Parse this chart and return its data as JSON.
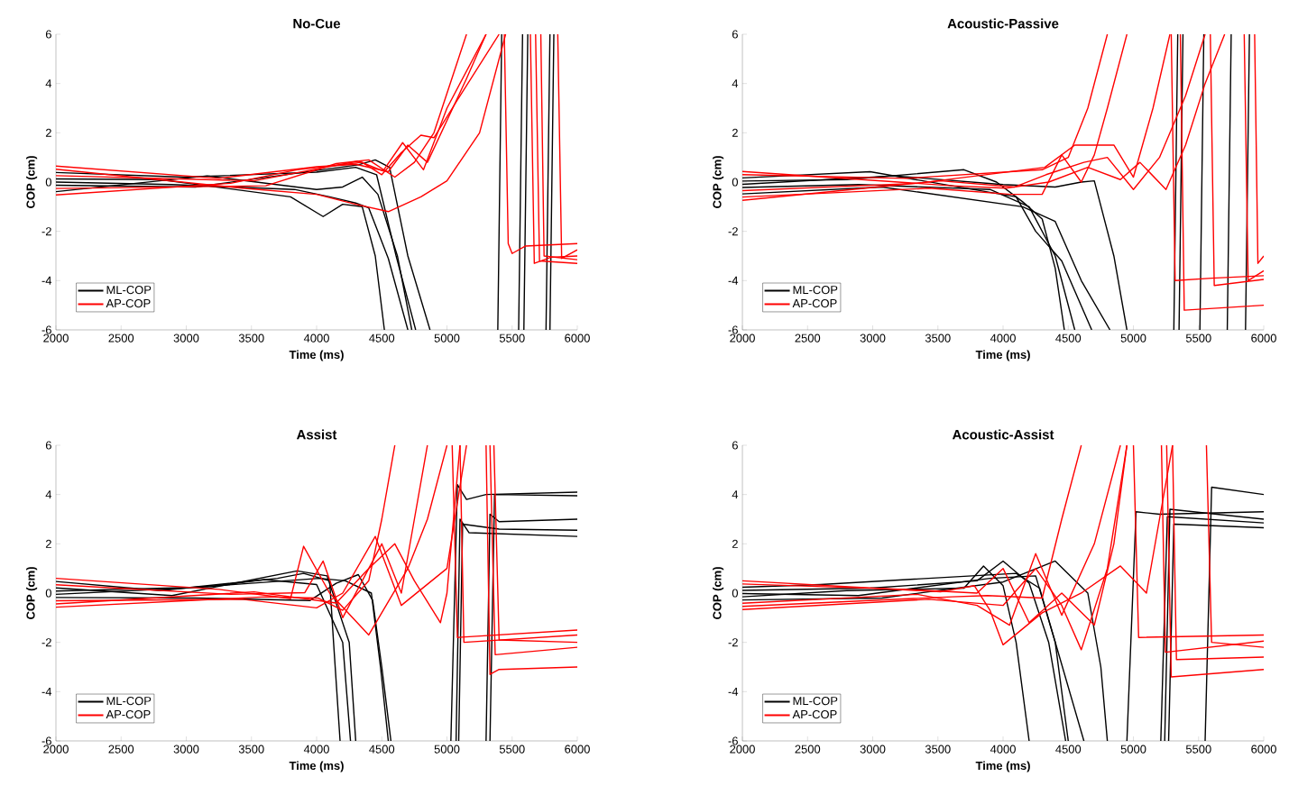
{
  "chart_data": [
    {
      "type": "line",
      "title": "No-Cue",
      "xlabel": "Time (ms)",
      "ylabel": "COP (cm)",
      "xlim": [
        2000,
        6000
      ],
      "ylim": [
        -6,
        6
      ],
      "xticks": [
        2000,
        2500,
        3000,
        3500,
        4000,
        4500,
        5000,
        5500,
        6000
      ],
      "yticks": [
        -6,
        -4,
        -2,
        0,
        2,
        4,
        6
      ],
      "legend": "bottom left",
      "series": [
        {
          "name": "ML-COP",
          "color": "#000000",
          "x": [
            2000,
            2800,
            3800,
            4050,
            4200,
            4350,
            4450,
            4520,
            4900,
            5390,
            5420
          ],
          "values": [
            0.13,
            0.1,
            -0.6,
            -1.4,
            -0.9,
            -1.0,
            -3,
            -6,
            null,
            -6,
            6
          ]
        },
        {
          "color": "#000000",
          "x": [
            2000,
            2890,
            3830,
            4100,
            4300,
            4400,
            4550,
            4700,
            5100,
            5550,
            5580
          ],
          "values": [
            0,
            -0.1,
            -0.3,
            -0.6,
            -0.85,
            -1.05,
            -3.1,
            -6,
            null,
            -6,
            6
          ]
        },
        {
          "color": "#000000",
          "x": [
            2000,
            2980,
            4000,
            4300,
            4460,
            4610,
            4760,
            5200,
            5590,
            5620
          ],
          "values": [
            0.39,
            0.2,
            0.4,
            0.6,
            0.3,
            -3,
            -6,
            null,
            -6,
            6
          ]
        },
        {
          "color": "#000000",
          "x": [
            2000,
            3070,
            4320,
            4450,
            4560,
            4700,
            4870,
            5300,
            5760,
            5790
          ],
          "values": [
            -0.13,
            -0.2,
            0.7,
            0.9,
            0.6,
            -3,
            -6,
            null,
            -6,
            6
          ]
        },
        {
          "color": "#000000",
          "x": [
            2000,
            3160,
            4000,
            4200,
            4350,
            4470,
            4620,
            4730,
            5150,
            5790,
            5820
          ],
          "values": [
            -0.39,
            0.25,
            -0.3,
            -0.2,
            0.2,
            -0.5,
            -3,
            -6,
            null,
            -6,
            6
          ]
        },
        {
          "name": "AP-COP",
          "color": "#ff0000",
          "x": [
            2000,
            3250,
            4000,
            4300,
            4550,
            4700,
            4850,
            5000,
            5150,
            5300,
            5370,
            5440,
            5470,
            5500,
            5600,
            6000
          ],
          "values": [
            0.65,
            0.15,
            0.62,
            0.72,
            0.42,
            1.5,
            0.8,
            2.5,
            4.2,
            6,
            null,
            6,
            -2.5,
            -2.9,
            -2.6,
            -2.5
          ]
        },
        {
          "color": "#ff0000",
          "x": [
            2000,
            3340,
            3850,
            4350,
            4500,
            4650,
            4800,
            4900,
            5100,
            5400,
            5520,
            5640,
            5670,
            5800,
            6000
          ],
          "values": [
            -0.52,
            -0.05,
            0.5,
            0.8,
            0.3,
            1.2,
            1.9,
            1.8,
            3.5,
            6,
            null,
            6,
            -3.3,
            -3.05,
            -3.0
          ]
        },
        {
          "color": "#ff0000",
          "x": [
            2000,
            3430,
            4000,
            4300,
            4550,
            4800,
            5000,
            5250,
            5450,
            5560,
            5680,
            5710,
            6000
          ],
          "values": [
            0.52,
            -0.25,
            -0.5,
            -0.9,
            -1.2,
            -0.6,
            0.05,
            2,
            6,
            null,
            6,
            -3.2,
            -3.3
          ]
        },
        {
          "color": "#ff0000",
          "x": [
            2000,
            3520,
            4320,
            4510,
            4660,
            4820,
            5000,
            5300,
            5580,
            5850,
            5880,
            6000
          ],
          "values": [
            0.26,
            0.05,
            0.85,
            0.45,
            1.6,
            0.5,
            3,
            6,
            null,
            6,
            -3.1,
            -2.75
          ]
        },
        {
          "color": "#ff0000",
          "x": [
            2000,
            3610,
            4150,
            4400,
            4600,
            4750,
            4900,
            5150,
            5430,
            5720,
            5745,
            6000
          ],
          "values": [
            -0.26,
            -0.15,
            0.75,
            0.9,
            0.2,
            0.8,
            2,
            6,
            null,
            6,
            -3.0,
            -3.15
          ]
        }
      ]
    },
    {
      "type": "line",
      "title": "Acoustic-Passive",
      "xlabel": "Time (ms)",
      "ylabel": "COP (cm)",
      "xlim": [
        2000,
        6000
      ],
      "ylim": [
        -6,
        6
      ],
      "xticks": [
        2000,
        2500,
        3000,
        3500,
        4000,
        4500,
        5000,
        5500,
        6000
      ],
      "yticks": [
        -6,
        -4,
        -2,
        0,
        2,
        4,
        6
      ],
      "legend": "bottom left",
      "series": [
        {
          "name": "ML-COP",
          "color": "#000000",
          "x": [
            2000,
            2800,
            3700,
            3950,
            4150,
            4300,
            4400,
            4470,
            4900,
            5310,
            5340
          ],
          "values": [
            0.04,
            0.1,
            0.5,
            0,
            -0.8,
            -1.5,
            -3.5,
            -6,
            null,
            -6,
            6
          ]
        },
        {
          "color": "#000000",
          "x": [
            2000,
            2890,
            3900,
            4200,
            4400,
            4550,
            4950,
            5350,
            5380
          ],
          "values": [
            -0.22,
            -0.1,
            -0.3,
            -1.0,
            -3,
            -6,
            null,
            -6,
            6
          ]
        },
        {
          "color": "#000000",
          "x": [
            2000,
            2980,
            4100,
            4250,
            4450,
            4680,
            5100,
            5510,
            5540
          ],
          "values": [
            0.17,
            0.42,
            -0.6,
            -2.0,
            -3.2,
            -6,
            null,
            -6,
            6
          ]
        },
        {
          "color": "#000000",
          "x": [
            2000,
            3070,
            4150,
            4400,
            4600,
            4820,
            5300,
            5720,
            5750
          ],
          "values": [
            -0.48,
            -0.2,
            -1.0,
            -1.6,
            -4,
            -6,
            null,
            -6,
            6
          ]
        },
        {
          "color": "#000000",
          "x": [
            2000,
            3160,
            4000,
            4400,
            4600,
            4700,
            4850,
            4950,
            5400,
            5860,
            5890
          ],
          "values": [
            -0.09,
            0.25,
            -0.1,
            -0.2,
            0,
            0.05,
            -3,
            -6,
            null,
            -6,
            6
          ]
        },
        {
          "name": "AP-COP",
          "color": "#ff0000",
          "x": [
            2000,
            3250,
            4300,
            4500,
            4650,
            4800,
            5050,
            5290,
            5320,
            5600,
            6000
          ],
          "values": [
            0.3,
            0.15,
            0.5,
            1.0,
            3,
            6,
            null,
            6,
            -4,
            -3.9,
            -3.8
          ]
        },
        {
          "color": "#ff0000",
          "x": [
            2000,
            3340,
            4320,
            4550,
            4850,
            5000,
            5150,
            5280,
            5320,
            5360,
            5390,
            6000
          ],
          "values": [
            -0.35,
            -0.05,
            0.6,
            1.5,
            1.5,
            0.2,
            3,
            6,
            null,
            6,
            -5.2,
            -5.0
          ]
        },
        {
          "color": "#ff0000",
          "x": [
            2000,
            3430,
            4060,
            4300,
            4450,
            4600,
            4700,
            4800,
            4950,
            5250,
            5590,
            5620,
            6000
          ],
          "values": [
            -0.61,
            -0.25,
            -0.5,
            -0.5,
            1.1,
            0,
            1.1,
            3,
            6,
            null,
            6,
            -4.2,
            -3.95
          ]
        },
        {
          "color": "#ff0000",
          "x": [
            2000,
            3520,
            4090,
            4330,
            4620,
            4800,
            5000,
            5200,
            5400,
            5550,
            5700,
            5850,
            5880,
            6000
          ],
          "values": [
            -0.74,
            0.05,
            -0.2,
            0.3,
            0.8,
            1.0,
            -0.3,
            1,
            3.5,
            6,
            null,
            6,
            -4.0,
            -3.6
          ]
        },
        {
          "color": "#ff0000",
          "x": [
            2000,
            3610,
            4020,
            4350,
            4650,
            4900,
            5050,
            5250,
            5400,
            5550,
            5700,
            5790,
            5930,
            5955,
            6000
          ],
          "values": [
            0.43,
            -0.15,
            -0.25,
            0,
            0.6,
            0.1,
            0.8,
            -0.3,
            1.5,
            4,
            6,
            null,
            6,
            -3.3,
            -3.0
          ]
        }
      ]
    },
    {
      "type": "line",
      "title": "Assist",
      "xlabel": "Time (ms)",
      "ylabel": "COP (cm)",
      "xlim": [
        2000,
        6000
      ],
      "ylim": [
        -6,
        6
      ],
      "xticks": [
        2000,
        2500,
        3000,
        3500,
        4000,
        4500,
        5000,
        5500,
        6000
      ],
      "yticks": [
        -6,
        -4,
        -2,
        0,
        2,
        4,
        6
      ],
      "legend": "bottom left",
      "series": [
        {
          "name": "ML-COP",
          "color": "#000000",
          "x": [
            2000,
            2800,
            3700,
            3900,
            4100,
            4130,
            4180,
            4600,
            5030,
            5080,
            5150,
            5300,
            6000
          ],
          "values": [
            0.47,
            0.1,
            0.6,
            0.8,
            0.5,
            -2,
            -6,
            null,
            -6,
            4.4,
            3.8,
            4.0,
            4.1
          ]
        },
        {
          "color": "#000000",
          "x": [
            2000,
            2890,
            3850,
            4080,
            4250,
            4300,
            4800,
            5300,
            5330,
            5400,
            6000
          ],
          "values": [
            0.21,
            -0.1,
            0.9,
            0.7,
            -2,
            -6,
            null,
            -6,
            3.2,
            2.9,
            3.0
          ]
        },
        {
          "color": "#000000",
          "x": [
            2000,
            2980,
            4020,
            4220,
            4420,
            4490,
            4550,
            4800,
            5070,
            5100,
            5170,
            6000
          ],
          "values": [
            -0.05,
            0.2,
            0.6,
            0.5,
            0,
            -3,
            -6,
            null,
            -6,
            3.0,
            2.45,
            2.3
          ]
        },
        {
          "color": "#000000",
          "x": [
            2000,
            3070,
            3950,
            4150,
            4320,
            4430,
            4500,
            4570,
            4950,
            5330,
            5365,
            6000
          ],
          "values": [
            -0.18,
            -0.2,
            -0.3,
            0.4,
            0.75,
            -0.3,
            -3,
            -6,
            null,
            -6,
            4.0,
            3.95
          ]
        },
        {
          "color": "#000000",
          "x": [
            2000,
            3160,
            3600,
            4000,
            4200,
            4260,
            4600,
            5090,
            5120,
            5400,
            6000
          ],
          "values": [
            0.08,
            0.25,
            0.55,
            0.35,
            -2,
            -6,
            null,
            -6,
            2.8,
            2.6,
            2.55
          ]
        },
        {
          "name": "AP-COP",
          "color": "#ff0000",
          "x": [
            2000,
            3250,
            3800,
            3900,
            4100,
            4400,
            4700,
            4850,
            5000,
            5020,
            5040,
            5080,
            6000
          ],
          "values": [
            0.6,
            0.15,
            -0.22,
            1.9,
            0,
            -1.7,
            1,
            3,
            6,
            null,
            6,
            -1.8,
            -1.5
          ]
        },
        {
          "color": "#ff0000",
          "x": [
            2000,
            3340,
            3910,
            4050,
            4200,
            4350,
            4500,
            4650,
            4750,
            4850,
            4960,
            5100,
            5130,
            6000
          ],
          "values": [
            0.34,
            -0.05,
            0.02,
            1.3,
            -1,
            0.5,
            2.0,
            0,
            3,
            6,
            null,
            6,
            -2.0,
            -1.7
          ]
        },
        {
          "color": "#ff0000",
          "x": [
            2000,
            3430,
            4000,
            4200,
            4450,
            4650,
            5000,
            5150,
            5240,
            5330,
            5370,
            6000
          ],
          "values": [
            -0.31,
            -0.25,
            -0.6,
            0,
            2.3,
            -0.5,
            1,
            6,
            null,
            6,
            -2.5,
            -2.2
          ]
        },
        {
          "color": "#ff0000",
          "x": [
            2000,
            3520,
            4150,
            4400,
            4600,
            4750,
            4950,
            5000,
            5100,
            5230,
            5360,
            5400,
            6000
          ],
          "values": [
            -0.44,
            0.05,
            -0.4,
            1.0,
            2.0,
            0.5,
            -1.2,
            0,
            6,
            null,
            6,
            -1.9,
            -2.0
          ]
        },
        {
          "color": "#ff0000",
          "x": [
            2000,
            3610,
            4010,
            4200,
            4400,
            4500,
            4600,
            4950,
            5300,
            5330,
            5400,
            6000
          ],
          "values": [
            -0.57,
            -0.15,
            -0.2,
            -0.7,
            0.5,
            3,
            6,
            null,
            6,
            -3.3,
            -3.1,
            -3.0
          ]
        }
      ]
    },
    {
      "type": "line",
      "title": "Acoustic-Assist",
      "xlabel": "Time (ms)",
      "ylabel": "COP (cm)",
      "xlim": [
        2000,
        6000
      ],
      "ylim": [
        -6,
        6
      ],
      "xticks": [
        2000,
        2500,
        3000,
        3500,
        4000,
        4500,
        5000,
        5500,
        6000
      ],
      "yticks": [
        -6,
        -4,
        -2,
        0,
        2,
        4,
        6
      ],
      "legend": "bottom left",
      "series": [
        {
          "name": "ML-COP",
          "color": "#000000",
          "x": [
            2000,
            2800,
            3700,
            3850,
            4000,
            4100,
            4200,
            4700,
            5210,
            5260,
            6000
          ],
          "values": [
            -0.15,
            0.1,
            0.2,
            1.1,
            0.3,
            -2,
            -6,
            null,
            -6,
            3.1,
            2.85
          ]
        },
        {
          "color": "#000000",
          "x": [
            2000,
            2890,
            3900,
            4250,
            4400,
            4500,
            4700,
            4950,
            5020,
            5200,
            6000
          ],
          "values": [
            -0.02,
            -0.1,
            0.6,
            0.7,
            -2,
            -6,
            null,
            -6,
            3.3,
            3.2,
            3.3
          ]
        },
        {
          "color": "#000000",
          "x": [
            2000,
            2980,
            3800,
            4000,
            4200,
            4350,
            4480,
            4850,
            5240,
            5280,
            6000
          ],
          "values": [
            0.11,
            0.2,
            0.5,
            1.3,
            0.4,
            -2,
            -6,
            null,
            -6,
            3.4,
            3.0
          ]
        },
        {
          "color": "#000000",
          "x": [
            2000,
            3070,
            4000,
            4400,
            4650,
            4750,
            4800,
            5200,
            5550,
            5600,
            6000
          ],
          "values": [
            -0.28,
            -0.2,
            0.45,
            1.3,
            0,
            -3,
            -6,
            null,
            -6,
            4.3,
            4.0
          ]
        },
        {
          "color": "#000000",
          "x": [
            2000,
            2600,
            4100,
            4280,
            4620,
            4850,
            5270,
            5310,
            6000
          ],
          "values": [
            0.24,
            0.35,
            0.8,
            0.2,
            -6,
            null,
            -6,
            2.8,
            2.65
          ]
        },
        {
          "name": "AP-COP",
          "color": "#ff0000",
          "x": [
            2000,
            3250,
            3800,
            4000,
            4200,
            4450,
            4700,
            4850,
            4950,
            4970,
            5000,
            5040,
            6000
          ],
          "values": [
            0.37,
            0.15,
            0,
            1.0,
            -1.2,
            0,
            -1.3,
            2,
            6,
            null,
            6,
            -1.8,
            -1.7
          ]
        },
        {
          "color": "#ff0000",
          "x": [
            2000,
            3340,
            3800,
            4050,
            4250,
            4450,
            4700,
            4900,
            5060,
            5215,
            5245,
            6000
          ],
          "values": [
            -0.41,
            -0.05,
            -0.5,
            -1.3,
            1.6,
            -0.9,
            2,
            6,
            null,
            6,
            -2.4,
            -1.95
          ]
        },
        {
          "color": "#ff0000",
          "x": [
            2000,
            3430,
            4000,
            4250,
            4450,
            4600,
            4800,
            4950,
            5100,
            5255,
            5290,
            6000
          ],
          "values": [
            -0.67,
            -0.25,
            -0.5,
            1.0,
            -0.5,
            -2.3,
            1,
            6,
            null,
            6,
            -3.4,
            -3.1
          ]
        },
        {
          "color": "#ff0000",
          "x": [
            2000,
            3520,
            3780,
            3900,
            4000,
            4300,
            4600,
            4900,
            5100,
            5200,
            5300,
            5430,
            5560,
            5600,
            6000
          ],
          "values": [
            0.5,
            0.05,
            0.3,
            -0.7,
            -2.1,
            -0.8,
            0,
            1.1,
            0,
            3,
            6,
            null,
            6,
            -2.0,
            -2.2
          ]
        },
        {
          "color": "#ff0000",
          "x": [
            2000,
            3610,
            3880,
            4300,
            4450,
            4600,
            4950,
            5300,
            5330,
            6000
          ],
          "values": [
            -0.54,
            -0.15,
            -0.1,
            -0.2,
            3,
            6,
            null,
            6,
            -2.7,
            -2.6
          ]
        }
      ]
    }
  ]
}
